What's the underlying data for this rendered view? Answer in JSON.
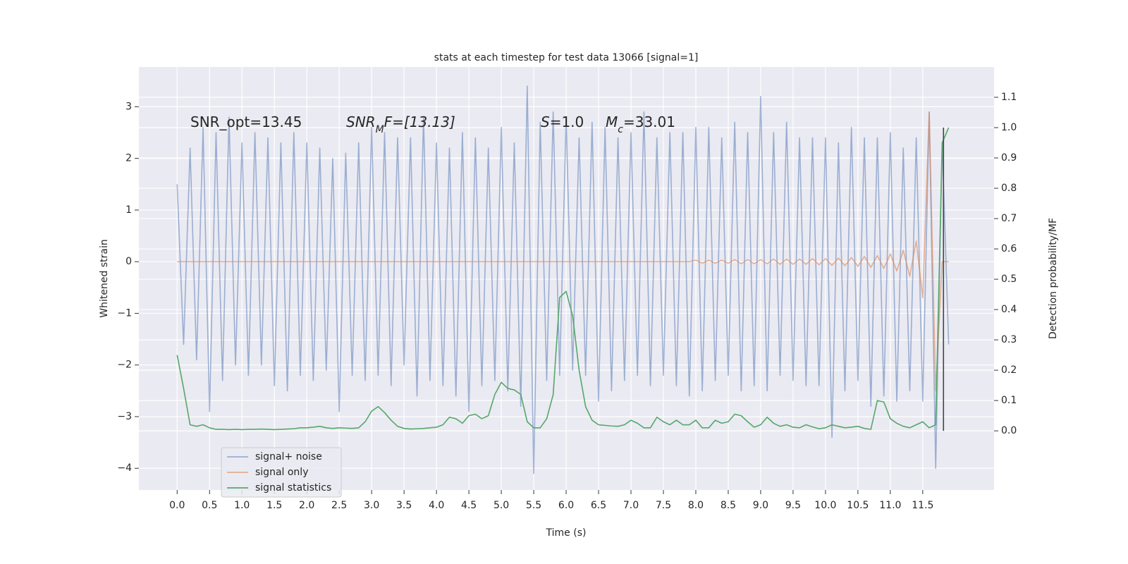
{
  "chart_data": {
    "type": "line",
    "title": "stats at each timestep for test data 13066 [signal=1]",
    "xlabel": "Time (s)",
    "ylabel": "Whitened strain",
    "y2label": "Detection probability/MF",
    "background": "#eaeaf2",
    "grid": true,
    "legend": "lower left",
    "xlim": [
      -0.59,
      12.6
    ],
    "ylim": [
      -4.42,
      3.77
    ],
    "y2lim": [
      -0.195,
      1.2
    ],
    "xticks": [
      {
        "value": 0,
        "label": "0.0"
      },
      0.5,
      {
        "value": 1,
        "label": "1.0"
      },
      1.5,
      {
        "value": 2,
        "label": "2.0"
      },
      2.5,
      {
        "value": 3,
        "label": "3.0"
      },
      3.5,
      {
        "value": 4,
        "label": "4.0"
      },
      4.5,
      {
        "value": 5,
        "label": "5.0"
      },
      5.5,
      {
        "value": 6,
        "label": "6.0"
      },
      6.5,
      {
        "value": 7,
        "label": "7.0"
      },
      7.5,
      {
        "value": 8,
        "label": "8.0"
      },
      8.5,
      {
        "value": 9,
        "label": "9.0"
      },
      9.5,
      {
        "value": 10,
        "label": "10.0"
      },
      10.5,
      {
        "value": 11,
        "label": "11.0"
      },
      11.5
    ],
    "yticks": [
      {
        "value": -4,
        "label": "−4"
      },
      {
        "value": -3,
        "label": "−3"
      },
      {
        "value": -2,
        "label": "−2"
      },
      {
        "value": -1,
        "label": "−1"
      },
      0,
      1,
      2,
      3
    ],
    "y2ticks": [
      {
        "value": 0,
        "label": "0.0"
      },
      0.1,
      0.2,
      0.3,
      0.4,
      0.5,
      0.6,
      0.7,
      0.8,
      0.9,
      {
        "value": 1,
        "label": "1.0"
      },
      1.1
    ],
    "annotations": [
      [
        {
          "text": "SNR_opt=13.45",
          "style": "normal"
        }
      ],
      [
        {
          "text": "SNR",
          "style": "italic"
        },
        {
          "text": "M",
          "style": "sub"
        },
        {
          "text": "F=[13.13]",
          "style": "italic"
        }
      ],
      [
        {
          "text": "S",
          "style": "italic"
        },
        {
          "text": "=1.0",
          "style": "normal"
        }
      ],
      [
        {
          "text": "M",
          "style": "italic"
        },
        {
          "text": "c",
          "style": "sub"
        },
        {
          "text": "=33.01",
          "style": "normal"
        }
      ]
    ],
    "vline": {
      "x": 11.82,
      "ymin": 0,
      "ymax": 1,
      "axis": "y2",
      "color": "#444444"
    },
    "x": [
      0.0,
      0.1,
      0.2,
      0.3,
      0.4,
      0.5,
      0.6,
      0.7,
      0.8,
      0.9,
      1.0,
      1.1,
      1.2,
      1.3,
      1.4,
      1.5,
      1.6,
      1.7,
      1.8,
      1.9,
      2.0,
      2.1,
      2.2,
      2.3,
      2.4,
      2.5,
      2.6,
      2.7,
      2.8,
      2.9,
      3.0,
      3.1,
      3.2,
      3.3,
      3.4,
      3.5,
      3.6,
      3.7,
      3.8,
      3.9,
      4.0,
      4.1,
      4.2,
      4.3,
      4.4,
      4.5,
      4.6,
      4.7,
      4.8,
      4.9,
      5.0,
      5.1,
      5.2,
      5.3,
      5.4,
      5.5,
      5.6,
      5.7,
      5.8,
      5.9,
      6.0,
      6.1,
      6.2,
      6.3,
      6.4,
      6.5,
      6.6,
      6.7,
      6.8,
      6.9,
      7.0,
      7.1,
      7.2,
      7.3,
      7.4,
      7.5,
      7.6,
      7.7,
      7.8,
      7.9,
      8.0,
      8.1,
      8.2,
      8.3,
      8.4,
      8.5,
      8.6,
      8.7,
      8.8,
      8.9,
      9.0,
      9.1,
      9.2,
      9.3,
      9.4,
      9.5,
      9.6,
      9.7,
      9.8,
      9.9,
      10.0,
      10.1,
      10.2,
      10.3,
      10.4,
      10.5,
      10.6,
      10.7,
      10.8,
      10.9,
      11.0,
      11.1,
      11.2,
      11.3,
      11.4,
      11.5,
      11.6,
      11.7,
      11.8,
      11.9
    ],
    "series": [
      {
        "name": "signal+ noise",
        "color": "#4c72b0",
        "alpha": 0.5,
        "values": [
          1.5,
          -1.6,
          2.2,
          -1.9,
          2.6,
          -2.9,
          2.5,
          -2.3,
          2.8,
          -2.0,
          2.3,
          -2.2,
          2.5,
          -2.0,
          2.4,
          -2.4,
          2.3,
          -2.5,
          2.5,
          -2.2,
          2.3,
          -2.3,
          2.2,
          -2.1,
          2.0,
          -2.9,
          2.1,
          -2.2,
          2.3,
          -2.3,
          2.6,
          -2.2,
          2.5,
          -2.4,
          2.4,
          -2.0,
          2.4,
          -2.6,
          2.8,
          -2.3,
          2.3,
          -2.4,
          2.2,
          -2.6,
          2.5,
          -2.9,
          2.4,
          -2.4,
          2.2,
          -2.3,
          2.6,
          -2.5,
          2.3,
          -2.8,
          3.4,
          -4.1,
          2.7,
          -2.3,
          2.9,
          -2.2,
          2.8,
          -2.1,
          2.4,
          -2.2,
          2.7,
          -2.7,
          2.6,
          -2.5,
          2.4,
          -2.3,
          2.5,
          -2.2,
          2.9,
          -2.4,
          2.4,
          -2.2,
          2.5,
          -2.4,
          2.5,
          -2.6,
          2.6,
          -2.5,
          2.6,
          -2.3,
          2.4,
          -2.2,
          2.7,
          -2.5,
          2.5,
          -2.4,
          3.2,
          -2.5,
          2.5,
          -2.2,
          2.7,
          -2.3,
          2.4,
          -2.4,
          2.4,
          -2.4,
          2.4,
          -3.4,
          2.3,
          -2.5,
          2.6,
          -2.3,
          2.4,
          -2.8,
          2.4,
          -2.6,
          2.5,
          -2.7,
          2.2,
          -2.5,
          2.4,
          -2.7,
          2.9,
          -4.0,
          2.3,
          -1.6
        ]
      },
      {
        "name": "signal only",
        "color": "#dd8452",
        "alpha": 0.6,
        "values": [
          0,
          0,
          0,
          0,
          0,
          0,
          0,
          0,
          0,
          0,
          0,
          0,
          0,
          0,
          0,
          0,
          0,
          0,
          0,
          0,
          0,
          0,
          0,
          0,
          0,
          0,
          0,
          0,
          0,
          0,
          0,
          0,
          0,
          0,
          0,
          0,
          0,
          0,
          0,
          0,
          0,
          0,
          0,
          0,
          0,
          0,
          0,
          0,
          0,
          0,
          0,
          0,
          0,
          0,
          0,
          0,
          0,
          0,
          0,
          0,
          0,
          0,
          0,
          0,
          0,
          0,
          0,
          0,
          0,
          0,
          0,
          0,
          0,
          0,
          0,
          0,
          0,
          0,
          0,
          0,
          0.03,
          -0.03,
          0.03,
          -0.03,
          0.03,
          -0.03,
          0.04,
          -0.04,
          0.04,
          -0.04,
          0.04,
          -0.04,
          0.05,
          -0.05,
          0.05,
          -0.05,
          0.05,
          -0.05,
          0.06,
          -0.06,
          0.06,
          -0.07,
          0.07,
          -0.08,
          0.08,
          -0.09,
          0.1,
          -0.11,
          0.12,
          -0.13,
          0.15,
          -0.18,
          0.22,
          -0.28,
          0.4,
          -0.7,
          2.9,
          -2.5,
          0,
          0
        ]
      },
      {
        "name": "signal statistics",
        "color": "#55a868",
        "alpha": 1,
        "axis": "y2",
        "values": [
          0.25,
          0.14,
          0.02,
          0.015,
          0.02,
          0.01,
          0.005,
          0.005,
          0.004,
          0.005,
          0.004,
          0.005,
          0.005,
          0.006,
          0.005,
          0.004,
          0.005,
          0.006,
          0.007,
          0.01,
          0.01,
          0.012,
          0.015,
          0.01,
          0.008,
          0.01,
          0.009,
          0.008,
          0.01,
          0.03,
          0.065,
          0.08,
          0.06,
          0.035,
          0.015,
          0.008,
          0.006,
          0.007,
          0.008,
          0.01,
          0.012,
          0.02,
          0.045,
          0.04,
          0.025,
          0.05,
          0.055,
          0.04,
          0.05,
          0.12,
          0.16,
          0.14,
          0.135,
          0.12,
          0.03,
          0.01,
          0.01,
          0.04,
          0.12,
          0.44,
          0.46,
          0.38,
          0.2,
          0.08,
          0.035,
          0.02,
          0.018,
          0.016,
          0.015,
          0.02,
          0.035,
          0.025,
          0.01,
          0.01,
          0.045,
          0.03,
          0.02,
          0.035,
          0.02,
          0.02,
          0.035,
          0.01,
          0.01,
          0.035,
          0.025,
          0.03,
          0.055,
          0.05,
          0.03,
          0.012,
          0.02,
          0.045,
          0.025,
          0.015,
          0.02,
          0.012,
          0.01,
          0.02,
          0.013,
          0.007,
          0.01,
          0.02,
          0.015,
          0.01,
          0.012,
          0.015,
          0.008,
          0.005,
          0.1,
          0.095,
          0.04,
          0.025,
          0.015,
          0.01,
          0.02,
          0.03,
          0.01,
          0.02,
          0.95,
          1.0
        ]
      }
    ]
  }
}
